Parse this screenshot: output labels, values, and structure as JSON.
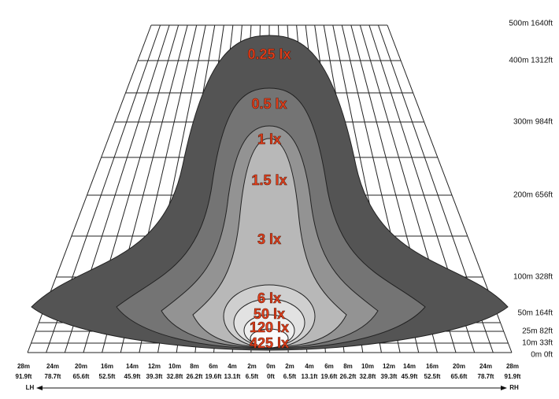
{
  "isolux": [
    "0.25 lx",
    "0.5 lx",
    "1 lx",
    "1.5 lx",
    "3 lx",
    "6 lx",
    "50 lx",
    "120 lx",
    "425 lx"
  ],
  "distances": [
    "500m 1640ft",
    "400m 1312ft",
    "300m 984ft",
    "200m 656ft",
    "100m 328ft",
    "50m 164ft",
    "25m 82ft",
    "10m 33ft",
    "0m 0ft"
  ],
  "lateral_m": [
    "28m",
    "24m",
    "20m",
    "16m",
    "14m",
    "12m",
    "10m",
    "8m",
    "6m",
    "4m",
    "2m",
    "0m",
    "2m",
    "4m",
    "6m",
    "8m",
    "10m",
    "12m",
    "14m",
    "16m",
    "20m",
    "24m",
    "28m"
  ],
  "lateral_ft": [
    "91.9ft",
    "78.7ft",
    "65.6ft",
    "52.5ft",
    "45.9ft",
    "39.3ft",
    "32.8ft",
    "26.2ft",
    "19.6ft",
    "13.1ft",
    "6.5ft",
    "0ft",
    "6.5ft",
    "13.1ft",
    "19.6ft",
    "26.2ft",
    "32.8ft",
    "39.3ft",
    "45.9ft",
    "52.5ft",
    "65.6ft",
    "78.7ft",
    "91.9ft"
  ],
  "left_label": "LH",
  "right_label": "RH"
}
